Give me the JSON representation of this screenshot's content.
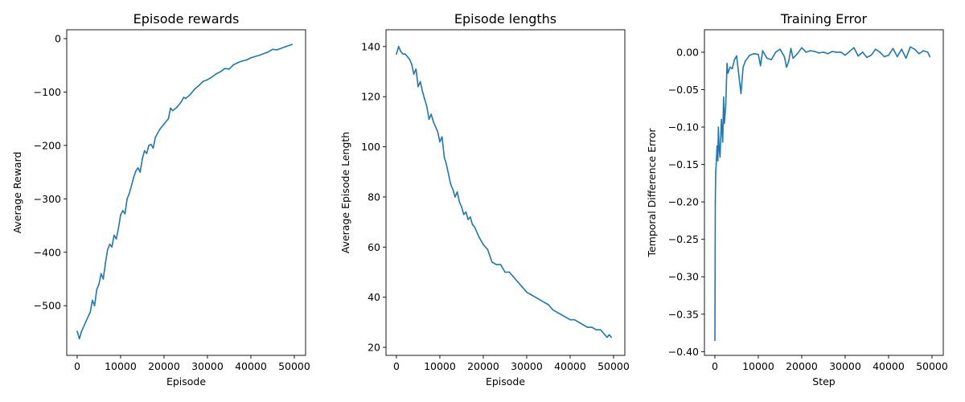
{
  "chart_data": [
    {
      "type": "line",
      "title": "Episode rewards",
      "xlabel": "Episode",
      "ylabel": "Average Reward",
      "xlim": [
        -2400,
        52600
      ],
      "ylim": [
        -593,
        16.6
      ],
      "xticks": [
        0,
        10000,
        20000,
        30000,
        40000,
        50000
      ],
      "yticks": [
        0,
        -100,
        -200,
        -300,
        -400,
        -500
      ],
      "grid": false,
      "color": "#1f77b4",
      "x": [
        0,
        500,
        1000,
        2000,
        3000,
        3500,
        4000,
        4500,
        5000,
        5500,
        6000,
        6500,
        7000,
        7500,
        8000,
        8500,
        9000,
        9500,
        10000,
        10500,
        11000,
        11500,
        12000,
        13000,
        13500,
        14000,
        14500,
        15000,
        15500,
        16000,
        16500,
        17000,
        17500,
        18000,
        19000,
        20000,
        21000,
        21500,
        22000,
        23000,
        24000,
        24500,
        25000,
        26000,
        27000,
        28000,
        29000,
        30000,
        31000,
        32000,
        33000,
        34000,
        35000,
        36000,
        37000,
        38000,
        39000,
        40000,
        42000,
        44000,
        45000,
        46000,
        48000,
        49500
      ],
      "y": [
        -548,
        -562,
        -548,
        -530,
        -512,
        -490,
        -500,
        -470,
        -460,
        -440,
        -450,
        -420,
        -395,
        -385,
        -390,
        -368,
        -375,
        -355,
        -330,
        -322,
        -328,
        -300,
        -290,
        -260,
        -248,
        -242,
        -250,
        -225,
        -210,
        -215,
        -200,
        -198,
        -205,
        -185,
        -170,
        -160,
        -150,
        -130,
        -135,
        -128,
        -118,
        -110,
        -112,
        -105,
        -95,
        -88,
        -80,
        -77,
        -72,
        -66,
        -62,
        -56,
        -57,
        -49,
        -45,
        -42,
        -40,
        -36,
        -31,
        -25,
        -20,
        -21,
        -15,
        -11
      ]
    },
    {
      "type": "line",
      "title": "Episode lengths",
      "xlabel": "Episode",
      "ylabel": "Average Episode Length",
      "xlim": [
        -2400,
        52600
      ],
      "ylim": [
        16.8,
        146.7
      ],
      "xticks": [
        0,
        10000,
        20000,
        30000,
        40000,
        50000
      ],
      "yticks": [
        20,
        40,
        60,
        80,
        100,
        120,
        140
      ],
      "grid": false,
      "color": "#1f77b4",
      "x": [
        0,
        500,
        1000,
        1500,
        2000,
        3000,
        3500,
        4000,
        4500,
        5000,
        5500,
        6000,
        6500,
        7000,
        7500,
        8000,
        8500,
        9000,
        9500,
        10000,
        10500,
        11000,
        11500,
        12000,
        12500,
        13000,
        13500,
        14000,
        14500,
        15000,
        15500,
        16000,
        16500,
        17000,
        17500,
        18000,
        19000,
        20000,
        21000,
        22000,
        23000,
        24000,
        25000,
        26000,
        27000,
        28000,
        29000,
        30000,
        31000,
        32000,
        33000,
        34000,
        35000,
        36000,
        37000,
        38000,
        39000,
        40000,
        41000,
        42000,
        43000,
        44000,
        45000,
        46000,
        47000,
        48000,
        48500,
        49000,
        49500
      ],
      "y": [
        137,
        140,
        138,
        137,
        137,
        135,
        133,
        129,
        131,
        124,
        126,
        122,
        119,
        116,
        111,
        113,
        110,
        108,
        106,
        102,
        104,
        96,
        93,
        89,
        85,
        83,
        80,
        82,
        78,
        76,
        73,
        74,
        71,
        72,
        69,
        68,
        64,
        61,
        59,
        54,
        53,
        53,
        50,
        50,
        48,
        46,
        44,
        42,
        41,
        40,
        39,
        38,
        37,
        35,
        34,
        33,
        32,
        31,
        31,
        30,
        29,
        28,
        28,
        27,
        27,
        25,
        24,
        25,
        24
      ]
    },
    {
      "type": "line",
      "title": "Training Error",
      "xlabel": "Step",
      "ylabel": "Temporal Difference Error",
      "xlim": [
        -2400,
        52600
      ],
      "ylim": [
        -0.405,
        0.03
      ],
      "xticks": [
        0,
        10000,
        20000,
        30000,
        40000,
        50000
      ],
      "yticks": [
        0.0,
        -0.05,
        -0.1,
        -0.15,
        -0.2,
        -0.25,
        -0.3,
        -0.35,
        -0.4
      ],
      "grid": false,
      "color": "#1f77b4",
      "x": [
        0,
        100,
        200,
        300,
        500,
        700,
        800,
        1000,
        1200,
        1500,
        1800,
        2000,
        2200,
        2500,
        2800,
        3000,
        3500,
        4000,
        4500,
        5000,
        5500,
        6000,
        6500,
        7000,
        8000,
        9000,
        10000,
        10500,
        11000,
        12000,
        13000,
        14000,
        15000,
        16000,
        16500,
        17000,
        17500,
        18000,
        19000,
        20000,
        21000,
        22000,
        23000,
        24000,
        25000,
        26000,
        27000,
        28000,
        29000,
        30000,
        31000,
        32000,
        33000,
        34000,
        35000,
        36000,
        37000,
        38000,
        39000,
        40000,
        41000,
        42000,
        43000,
        44000,
        45000,
        46000,
        47000,
        48000,
        49000,
        49500
      ],
      "y": [
        -0.385,
        -0.2,
        -0.16,
        -0.15,
        -0.125,
        -0.145,
        -0.1,
        -0.13,
        -0.14,
        -0.09,
        -0.12,
        -0.06,
        -0.095,
        -0.07,
        -0.015,
        -0.028,
        -0.02,
        -0.022,
        -0.01,
        -0.005,
        -0.03,
        -0.055,
        -0.02,
        -0.012,
        -0.004,
        -0.002,
        -0.003,
        -0.018,
        0.002,
        -0.008,
        -0.01,
        0.0,
        0.004,
        -0.006,
        -0.02,
        -0.012,
        0.005,
        -0.008,
        -0.002,
        0.006,
        0.0,
        0.002,
        0.001,
        -0.001,
        0.0,
        -0.002,
        0.001,
        0.0,
        0.0,
        -0.004,
        0.001,
        0.006,
        -0.005,
        0.0,
        -0.007,
        -0.004,
        0.004,
        0.0,
        -0.006,
        -0.004,
        0.005,
        -0.006,
        0.004,
        -0.008,
        0.007,
        0.004,
        -0.002,
        0.002,
        0.0,
        -0.006
      ]
    }
  ]
}
